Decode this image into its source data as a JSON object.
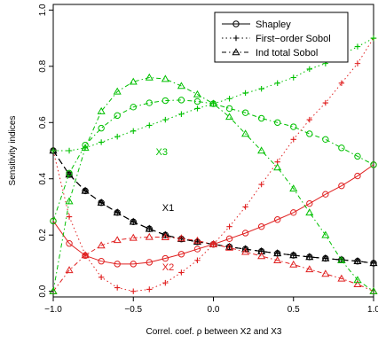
{
  "chart_data": {
    "type": "line",
    "xlabel": "Correl. coef. ρ between X2 and X3",
    "ylabel": "Sensitivity indices",
    "xlim": [
      -1,
      1
    ],
    "ylim": [
      -0.02,
      1.02
    ],
    "xticks": [
      -1,
      -0.5,
      0,
      0.5,
      1
    ],
    "xtick_labels": [
      "−1.0",
      "−0.5",
      "0.0",
      "0.5",
      "1.0"
    ],
    "yticks": [
      0,
      0.2,
      0.4,
      0.6,
      0.8,
      1
    ],
    "ytick_labels": [
      "0.0",
      "0.2",
      "0.4",
      "0.6",
      "0.8",
      "1.0"
    ],
    "grid": false,
    "legend_position": "top-right",
    "legend": [
      {
        "label": "Shapley",
        "marker": "circle",
        "dash": "solid"
      },
      {
        "label": "First−order Sobol",
        "marker": "plus",
        "dash": "dotted"
      },
      {
        "label": "Ind total Sobol",
        "marker": "triangle",
        "dash": "dashdot"
      }
    ],
    "annotations": [
      {
        "text": "X3",
        "x": -0.36,
        "y": 0.485,
        "color": "#00c000"
      },
      {
        "text": "X1",
        "x": -0.32,
        "y": 0.285,
        "color": "#000000"
      },
      {
        "text": "X2",
        "x": -0.32,
        "y": 0.075,
        "color": "#e02020"
      }
    ],
    "x": [
      -1.0,
      -0.9,
      -0.8,
      -0.7,
      -0.6,
      -0.5,
      -0.4,
      -0.3,
      -0.2,
      -0.1,
      0.0,
      0.1,
      0.2,
      0.3,
      0.4,
      0.5,
      0.6,
      0.7,
      0.8,
      0.9,
      1.0
    ],
    "series": [
      {
        "group": "X1",
        "index": "Shapley",
        "color": "#000000",
        "marker": "circle",
        "dash": "longdash",
        "values": [
          0.5,
          0.415,
          0.357,
          0.315,
          0.28,
          0.247,
          0.222,
          0.2,
          0.186,
          0.176,
          0.167,
          0.158,
          0.15,
          0.142,
          0.135,
          0.128,
          0.122,
          0.117,
          0.112,
          0.107,
          0.1
        ]
      },
      {
        "group": "X1",
        "index": "First−order Sobol",
        "color": "#000000",
        "marker": "plus",
        "dash": "longdash",
        "values": [
          0.5,
          0.415,
          0.357,
          0.315,
          0.28,
          0.247,
          0.222,
          0.2,
          0.186,
          0.176,
          0.167,
          0.158,
          0.15,
          0.142,
          0.135,
          0.128,
          0.122,
          0.117,
          0.112,
          0.107,
          0.1
        ]
      },
      {
        "group": "X1",
        "index": "Ind total Sobol",
        "color": "#000000",
        "marker": "triangle",
        "dash": "longdash",
        "values": [
          0.5,
          0.415,
          0.357,
          0.315,
          0.28,
          0.247,
          0.222,
          0.2,
          0.186,
          0.176,
          0.167,
          0.158,
          0.15,
          0.142,
          0.135,
          0.128,
          0.122,
          0.117,
          0.112,
          0.107,
          0.1
        ]
      },
      {
        "group": "X2",
        "index": "Shapley",
        "color": "#e02020",
        "marker": "circle",
        "dash": "solid",
        "values": [
          0.25,
          0.17,
          0.127,
          0.107,
          0.097,
          0.097,
          0.103,
          0.117,
          0.132,
          0.15,
          0.167,
          0.187,
          0.207,
          0.23,
          0.255,
          0.28,
          0.312,
          0.345,
          0.375,
          0.41,
          0.45
        ]
      },
      {
        "group": "X2",
        "index": "First−order Sobol",
        "color": "#e02020",
        "marker": "plus",
        "dash": "dotted",
        "values": [
          0.5,
          0.265,
          0.13,
          0.05,
          0.013,
          0.0,
          0.007,
          0.03,
          0.067,
          0.11,
          0.167,
          0.23,
          0.3,
          0.38,
          0.46,
          0.54,
          0.61,
          0.67,
          0.74,
          0.81,
          0.9
        ]
      },
      {
        "group": "X2",
        "index": "Ind total Sobol",
        "color": "#e02020",
        "marker": "triangle",
        "dash": "dashdot",
        "values": [
          0.0,
          0.075,
          0.128,
          0.163,
          0.182,
          0.19,
          0.193,
          0.192,
          0.188,
          0.18,
          0.167,
          0.155,
          0.14,
          0.125,
          0.11,
          0.095,
          0.078,
          0.062,
          0.045,
          0.025,
          0.0
        ]
      },
      {
        "group": "X3",
        "index": "Shapley",
        "color": "#00c000",
        "marker": "circle",
        "dash": "dashdot",
        "values": [
          0.25,
          0.42,
          0.52,
          0.58,
          0.625,
          0.655,
          0.67,
          0.678,
          0.68,
          0.675,
          0.667,
          0.65,
          0.635,
          0.615,
          0.6,
          0.585,
          0.56,
          0.54,
          0.51,
          0.48,
          0.45
        ]
      },
      {
        "group": "X3",
        "index": "First−order Sobol",
        "color": "#00c000",
        "marker": "plus",
        "dash": "dotted",
        "values": [
          0.5,
          0.5,
          0.51,
          0.53,
          0.55,
          0.57,
          0.59,
          0.61,
          0.63,
          0.65,
          0.667,
          0.685,
          0.705,
          0.72,
          0.74,
          0.76,
          0.79,
          0.81,
          0.84,
          0.87,
          0.9
        ]
      },
      {
        "group": "X3",
        "index": "Ind total Sobol",
        "color": "#00c000",
        "marker": "triangle",
        "dash": "dashdot",
        "values": [
          0.0,
          0.32,
          0.51,
          0.64,
          0.71,
          0.745,
          0.76,
          0.755,
          0.73,
          0.7,
          0.667,
          0.62,
          0.56,
          0.5,
          0.44,
          0.365,
          0.28,
          0.2,
          0.11,
          0.04,
          0.0
        ]
      }
    ]
  }
}
